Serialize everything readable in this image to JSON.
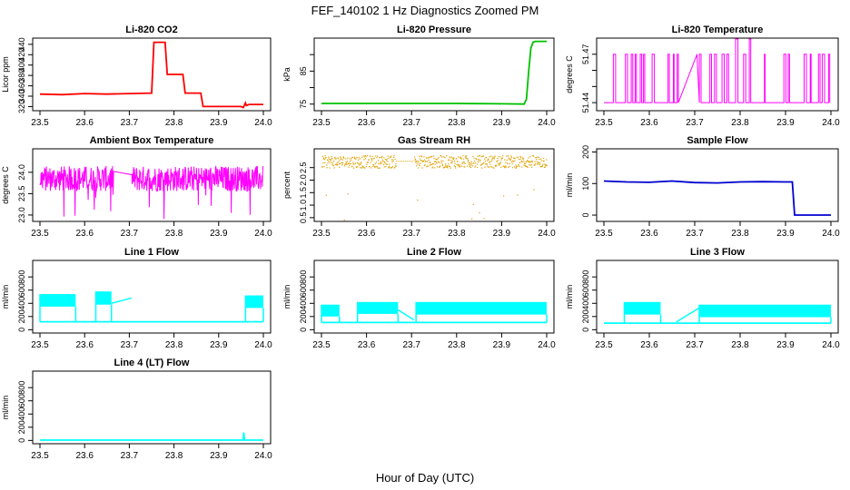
{
  "figure": {
    "title": "FEF_140102  1 Hz Diagnostics Zoomed PM",
    "xlabel": "Hour of Day (UTC)"
  },
  "chart_data": [
    {
      "type": "line",
      "title": "Li-820 CO2",
      "ylabel": "Licor ppm",
      "color": "#ff0000",
      "xlim": [
        23.5,
        24.0
      ],
      "ylim": [
        312,
        452
      ],
      "xticks": [
        "23.5",
        "23.6",
        "23.7",
        "23.8",
        "23.9",
        "24.0"
      ],
      "yticks": [
        320,
        340,
        360,
        380,
        400,
        420,
        440
      ],
      "series": [
        {
          "x": [
            23.5,
            23.55,
            23.6,
            23.65,
            23.7,
            23.75,
            23.755,
            23.78,
            23.785,
            23.82,
            23.825,
            23.86,
            23.865,
            23.95,
            23.955,
            23.96,
            23.962,
            23.965,
            23.968,
            24.0
          ],
          "y": [
            344,
            343,
            345,
            344,
            345,
            346,
            444,
            444,
            382,
            382,
            346,
            346,
            320,
            320,
            318,
            327,
            322,
            323,
            324,
            324
          ]
        }
      ]
    },
    {
      "type": "line",
      "title": "Li-820 Pressure",
      "ylabel": "kPa",
      "color": "#00c000",
      "xlim": [
        23.5,
        24.0
      ],
      "ylim": [
        73,
        95
      ],
      "xticks": [
        "23.5",
        "23.6",
        "23.7",
        "23.8",
        "23.9",
        "24.0"
      ],
      "yticks": [
        75,
        85
      ],
      "yticks_extra": [
        80,
        90
      ],
      "series": [
        {
          "x": [
            23.5,
            23.7,
            23.8,
            23.9,
            23.95,
            23.955,
            23.96,
            23.965,
            23.97,
            23.975,
            24.0
          ],
          "y": [
            75.2,
            75.2,
            75.2,
            75.1,
            75.0,
            76.5,
            85,
            92,
            93.8,
            94.0,
            94.0
          ]
        }
      ]
    },
    {
      "type": "line",
      "title": "Li-820 Temperature",
      "ylabel": "degrees C",
      "color": "#ff00ff",
      "xlim": [
        23.5,
        24.0
      ],
      "ylim": [
        51.435,
        51.48
      ],
      "xticks": [
        "23.5",
        "23.6",
        "23.7",
        "23.8",
        "23.9",
        "24.0"
      ],
      "yticks": [
        51.44,
        51.47
      ],
      "yticks_extra": [
        51.45,
        51.46
      ],
      "levels": {
        "low": 51.44,
        "high": 51.47,
        "spike": 51.48
      }
    },
    {
      "type": "line",
      "title": "Ambient Box Temperature",
      "ylabel": "degrees C",
      "color": "#ff00ff",
      "xlim": [
        23.5,
        24.0
      ],
      "ylim": [
        22.85,
        24.55
      ],
      "xticks": [
        "23.5",
        "23.6",
        "23.7",
        "23.8",
        "23.9",
        "24.0"
      ],
      "yticks": [
        23.0,
        23.5,
        24.0
      ],
      "yticks_text": [
        "23.0",
        "23.5",
        "24.0"
      ],
      "band": {
        "low": 23.55,
        "high": 24.15,
        "center": 23.85
      }
    },
    {
      "type": "scatter",
      "title": "Gas Stream RH",
      "ylabel": "percent",
      "color": "#e0a000",
      "xlim": [
        23.5,
        24.0
      ],
      "ylim": [
        0.35,
        3.25
      ],
      "xticks": [
        "23.5",
        "23.6",
        "23.7",
        "23.8",
        "23.9",
        "24.0"
      ],
      "yticks": [
        0.5,
        1.0,
        1.5,
        2.0,
        2.5
      ],
      "yticks_text": [
        "0.5",
        "1.0",
        "1.5",
        "2.0",
        "2.5"
      ],
      "band": {
        "low": 2.5,
        "high": 3.0,
        "center": 2.75
      }
    },
    {
      "type": "line",
      "title": "Sample Flow",
      "ylabel": "ml/min",
      "color": "#0000d0",
      "xlim": [
        23.5,
        24.0
      ],
      "ylim": [
        -20,
        210
      ],
      "xticks": [
        "23.5",
        "23.6",
        "23.7",
        "23.8",
        "23.9",
        "24.0"
      ],
      "yticks": [
        0,
        100,
        200
      ],
      "series": [
        {
          "x": [
            23.5,
            23.55,
            23.6,
            23.65,
            23.7,
            23.75,
            23.8,
            23.85,
            23.9,
            23.915,
            23.92,
            23.95,
            24.0
          ],
          "y": [
            108,
            105,
            104,
            108,
            103,
            102,
            105,
            106,
            105,
            105,
            0,
            0,
            0
          ]
        }
      ]
    },
    {
      "type": "line",
      "title": "Line 1 Flow",
      "ylabel": "ml/min",
      "color": "#00ffff",
      "xlim": [
        23.5,
        24.0
      ],
      "ylim": [
        -50,
        1050
      ],
      "xticks": [
        "23.5",
        "23.6",
        "23.7",
        "23.8",
        "23.9",
        "24.0"
      ],
      "yticks": [
        0,
        200,
        400,
        600,
        800
      ],
      "base": 120,
      "segments": [
        {
          "x0": 23.5,
          "x1": 23.58,
          "low": 350,
          "high": 540
        },
        {
          "x0": 23.625,
          "x1": 23.66,
          "low": 380,
          "high": 580
        },
        {
          "x0": 23.96,
          "x1": 24.0,
          "low": 330,
          "high": 520
        }
      ],
      "ramps": [
        {
          "x0": 23.66,
          "y0": 400,
          "x1": 23.705,
          "y1": 480
        }
      ]
    },
    {
      "type": "line",
      "title": "Line 2 Flow",
      "ylabel": "ml/min",
      "color": "#00ffff",
      "xlim": [
        23.5,
        24.0
      ],
      "ylim": [
        -50,
        1050
      ],
      "xticks": [
        "23.5",
        "23.6",
        "23.7",
        "23.8",
        "23.9",
        "24.0"
      ],
      "yticks": [
        0,
        200,
        400,
        600,
        800
      ],
      "base": 110,
      "segments": [
        {
          "x0": 23.5,
          "x1": 23.54,
          "low": 200,
          "high": 380
        },
        {
          "x0": 23.58,
          "x1": 23.67,
          "low": 240,
          "high": 420
        },
        {
          "x0": 23.71,
          "x1": 24.0,
          "low": 230,
          "high": 420
        }
      ],
      "ramps": [
        {
          "x0": 23.67,
          "y0": 300,
          "x1": 23.705,
          "y1": 150
        }
      ]
    },
    {
      "type": "line",
      "title": "Line 3 Flow",
      "ylabel": "ml/min",
      "color": "#00ffff",
      "xlim": [
        23.5,
        24.0
      ],
      "ylim": [
        -50,
        1050
      ],
      "xticks": [
        "23.5",
        "23.6",
        "23.7",
        "23.8",
        "23.9",
        "24.0"
      ],
      "yticks": [
        0,
        200,
        400,
        600,
        800
      ],
      "base": 100,
      "segments": [
        {
          "x0": 23.545,
          "x1": 23.625,
          "low": 230,
          "high": 420
        },
        {
          "x0": 23.71,
          "x1": 24.0,
          "low": 190,
          "high": 380
        }
      ],
      "ramps": [
        {
          "x0": 23.66,
          "y0": 120,
          "x1": 23.71,
          "y1": 330
        }
      ]
    },
    {
      "type": "line",
      "title": "Line 4 (LT) Flow",
      "ylabel": "ml/min",
      "color": "#00ffff",
      "xlim": [
        23.5,
        24.0
      ],
      "ylim": [
        -50,
        1050
      ],
      "xticks": [
        "23.5",
        "23.6",
        "23.7",
        "23.8",
        "23.9",
        "24.0"
      ],
      "yticks": [
        0,
        200,
        400,
        600,
        800
      ],
      "series": [
        {
          "x": [
            23.5,
            23.7,
            23.9,
            23.955,
            23.956,
            23.958,
            23.96,
            24.0
          ],
          "y": [
            5,
            5,
            5,
            5,
            120,
            5,
            5,
            5
          ]
        }
      ]
    }
  ]
}
